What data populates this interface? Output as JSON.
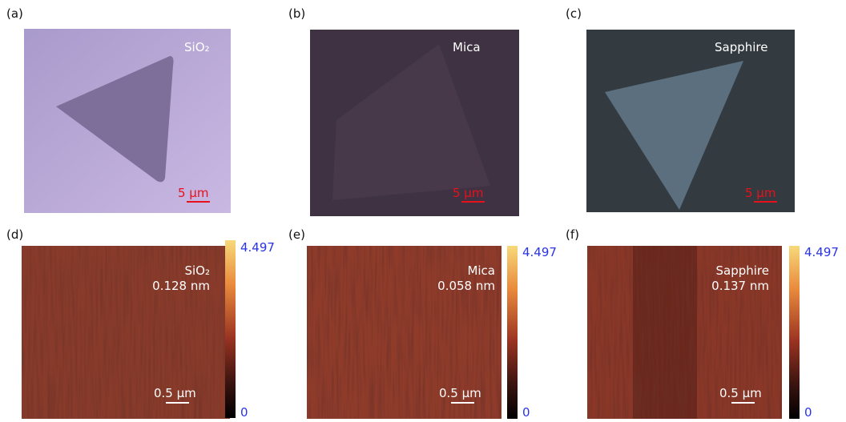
{
  "optical_panels": [
    {
      "label": "(a)",
      "substrate": "SiO₂",
      "scale_bar": "5 μm"
    },
    {
      "label": "(b)",
      "substrate": "Mica",
      "scale_bar": "5 μm"
    },
    {
      "label": "(c)",
      "substrate": "Sapphire",
      "scale_bar": "5 μm"
    }
  ],
  "afm_panels": [
    {
      "label": "(d)",
      "substrate": "SiO₂",
      "roughness": "0.128 nm",
      "scale_bar": "0.5 μm",
      "colorbar_max": "4.497",
      "colorbar_min": "0"
    },
    {
      "label": "(e)",
      "substrate": "Mica",
      "roughness": "0.058 nm",
      "scale_bar": "0.5 μm",
      "colorbar_max": "4.497",
      "colorbar_min": "0"
    },
    {
      "label": "(f)",
      "substrate": "Sapphire",
      "roughness": "0.137 nm",
      "scale_bar": "0.5 μm",
      "colorbar_max": "4.497",
      "colorbar_min": "0"
    }
  ]
}
